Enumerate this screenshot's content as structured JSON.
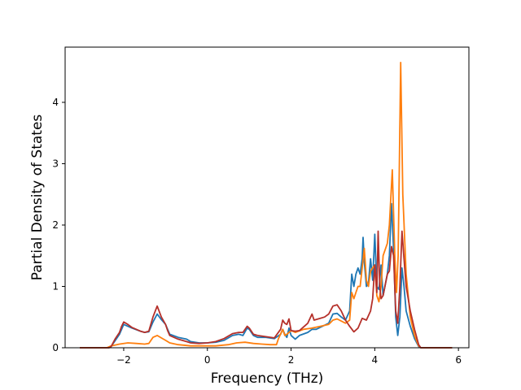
{
  "chart_data": {
    "type": "line",
    "title": "",
    "xlabel": "Frequency (THz)",
    "ylabel": "Partial Density of States",
    "xlim": [
      -3.4,
      6.25
    ],
    "ylim": [
      0,
      4.9
    ],
    "xticks": [
      -2,
      0,
      2,
      4,
      6
    ],
    "xtick_labels": [
      "−2",
      "0",
      "2",
      "4",
      "6"
    ],
    "yticks": [
      0,
      1,
      2,
      3,
      4
    ],
    "ytick_labels": [
      "0",
      "1",
      "2",
      "3",
      "4"
    ],
    "grid": false,
    "legend": "none",
    "series": [
      {
        "color": "#1f77b4",
        "points": [
          [
            -3.05,
            0
          ],
          [
            -2.35,
            0
          ],
          [
            -2.3,
            0.02
          ],
          [
            -2.2,
            0.12
          ],
          [
            -2.1,
            0.22
          ],
          [
            -2.05,
            0.3
          ],
          [
            -2.0,
            0.38
          ],
          [
            -1.9,
            0.35
          ],
          [
            -1.8,
            0.32
          ],
          [
            -1.6,
            0.27
          ],
          [
            -1.5,
            0.25
          ],
          [
            -1.4,
            0.26
          ],
          [
            -1.3,
            0.42
          ],
          [
            -1.2,
            0.55
          ],
          [
            -1.1,
            0.46
          ],
          [
            -1.0,
            0.38
          ],
          [
            -0.95,
            0.3
          ],
          [
            -0.9,
            0.22
          ],
          [
            -0.7,
            0.17
          ],
          [
            -0.5,
            0.14
          ],
          [
            -0.4,
            0.1
          ],
          [
            -0.2,
            0.08
          ],
          [
            0.0,
            0.08
          ],
          [
            0.2,
            0.09
          ],
          [
            0.4,
            0.12
          ],
          [
            0.6,
            0.2
          ],
          [
            0.75,
            0.22
          ],
          [
            0.85,
            0.2
          ],
          [
            0.95,
            0.32
          ],
          [
            1.0,
            0.3
          ],
          [
            1.1,
            0.2
          ],
          [
            1.2,
            0.17
          ],
          [
            1.4,
            0.17
          ],
          [
            1.6,
            0.15
          ],
          [
            1.75,
            0.22
          ],
          [
            1.8,
            0.3
          ],
          [
            1.85,
            0.22
          ],
          [
            1.9,
            0.17
          ],
          [
            1.95,
            0.32
          ],
          [
            2.0,
            0.2
          ],
          [
            2.1,
            0.14
          ],
          [
            2.2,
            0.2
          ],
          [
            2.4,
            0.25
          ],
          [
            2.5,
            0.3
          ],
          [
            2.6,
            0.3
          ],
          [
            2.75,
            0.35
          ],
          [
            2.9,
            0.4
          ],
          [
            3.0,
            0.55
          ],
          [
            3.1,
            0.56
          ],
          [
            3.2,
            0.5
          ],
          [
            3.3,
            0.45
          ],
          [
            3.4,
            0.6
          ],
          [
            3.45,
            1.2
          ],
          [
            3.5,
            1.0
          ],
          [
            3.55,
            1.2
          ],
          [
            3.6,
            1.3
          ],
          [
            3.65,
            1.2
          ],
          [
            3.7,
            1.45
          ],
          [
            3.72,
            1.8
          ],
          [
            3.75,
            1.4
          ],
          [
            3.8,
            1.0
          ],
          [
            3.85,
            1.05
          ],
          [
            3.9,
            1.45
          ],
          [
            3.95,
            1.1
          ],
          [
            4.0,
            1.85
          ],
          [
            4.05,
            1.0
          ],
          [
            4.1,
            0.95
          ],
          [
            4.15,
            1.35
          ],
          [
            4.2,
            0.85
          ],
          [
            4.3,
            1.2
          ],
          [
            4.35,
            1.5
          ],
          [
            4.4,
            2.35
          ],
          [
            4.45,
            1.6
          ],
          [
            4.5,
            0.5
          ],
          [
            4.55,
            0.2
          ],
          [
            4.6,
            0.5
          ],
          [
            4.65,
            1.3
          ],
          [
            4.7,
            1.0
          ],
          [
            4.75,
            0.6
          ],
          [
            4.85,
            0.35
          ],
          [
            4.95,
            0.15
          ],
          [
            5.05,
            0.02
          ],
          [
            5.1,
            0
          ],
          [
            5.85,
            0
          ]
        ]
      },
      {
        "color": "#ff7f0e",
        "points": [
          [
            -3.05,
            0
          ],
          [
            -2.4,
            0
          ],
          [
            -2.3,
            0.03
          ],
          [
            -2.1,
            0.06
          ],
          [
            -1.9,
            0.08
          ],
          [
            -1.7,
            0.07
          ],
          [
            -1.5,
            0.06
          ],
          [
            -1.4,
            0.07
          ],
          [
            -1.3,
            0.17
          ],
          [
            -1.2,
            0.2
          ],
          [
            -1.1,
            0.16
          ],
          [
            -1.0,
            0.12
          ],
          [
            -0.9,
            0.08
          ],
          [
            -0.7,
            0.05
          ],
          [
            -0.4,
            0.03
          ],
          [
            -0.2,
            0.03
          ],
          [
            0.0,
            0.03
          ],
          [
            0.2,
            0.03
          ],
          [
            0.5,
            0.05
          ],
          [
            0.7,
            0.08
          ],
          [
            0.9,
            0.09
          ],
          [
            1.1,
            0.07
          ],
          [
            1.3,
            0.06
          ],
          [
            1.5,
            0.05
          ],
          [
            1.65,
            0.05
          ],
          [
            1.7,
            0.15
          ],
          [
            1.8,
            0.3
          ],
          [
            1.85,
            0.2
          ],
          [
            1.9,
            0.22
          ],
          [
            2.0,
            0.28
          ],
          [
            2.1,
            0.25
          ],
          [
            2.3,
            0.3
          ],
          [
            2.5,
            0.32
          ],
          [
            2.7,
            0.35
          ],
          [
            2.9,
            0.38
          ],
          [
            3.0,
            0.45
          ],
          [
            3.1,
            0.47
          ],
          [
            3.3,
            0.4
          ],
          [
            3.4,
            0.45
          ],
          [
            3.45,
            0.9
          ],
          [
            3.5,
            0.8
          ],
          [
            3.55,
            0.9
          ],
          [
            3.6,
            1.0
          ],
          [
            3.65,
            1.0
          ],
          [
            3.7,
            1.3
          ],
          [
            3.75,
            1.62
          ],
          [
            3.8,
            1.1
          ],
          [
            3.85,
            1.0
          ],
          [
            3.9,
            1.25
          ],
          [
            3.95,
            1.3
          ],
          [
            4.0,
            1.35
          ],
          [
            4.05,
            0.85
          ],
          [
            4.1,
            0.75
          ],
          [
            4.15,
            1.0
          ],
          [
            4.2,
            1.5
          ],
          [
            4.3,
            1.7
          ],
          [
            4.35,
            2.0
          ],
          [
            4.42,
            2.9
          ],
          [
            4.48,
            1.5
          ],
          [
            4.52,
            0.9
          ],
          [
            4.56,
            1.5
          ],
          [
            4.62,
            4.65
          ],
          [
            4.67,
            2.5
          ],
          [
            4.75,
            1.2
          ],
          [
            4.85,
            0.5
          ],
          [
            4.95,
            0.2
          ],
          [
            5.05,
            0.03
          ],
          [
            5.1,
            0
          ],
          [
            5.85,
            0
          ]
        ]
      },
      {
        "color": "#b5302a",
        "points": [
          [
            -3.05,
            0
          ],
          [
            -2.35,
            0
          ],
          [
            -2.3,
            0.02
          ],
          [
            -2.2,
            0.15
          ],
          [
            -2.1,
            0.25
          ],
          [
            -2.05,
            0.35
          ],
          [
            -2.0,
            0.42
          ],
          [
            -1.9,
            0.38
          ],
          [
            -1.8,
            0.33
          ],
          [
            -1.6,
            0.27
          ],
          [
            -1.5,
            0.25
          ],
          [
            -1.4,
            0.27
          ],
          [
            -1.3,
            0.5
          ],
          [
            -1.2,
            0.68
          ],
          [
            -1.1,
            0.5
          ],
          [
            -1.0,
            0.38
          ],
          [
            -0.95,
            0.28
          ],
          [
            -0.9,
            0.2
          ],
          [
            -0.7,
            0.14
          ],
          [
            -0.5,
            0.1
          ],
          [
            -0.4,
            0.08
          ],
          [
            -0.2,
            0.07
          ],
          [
            0.0,
            0.08
          ],
          [
            0.2,
            0.1
          ],
          [
            0.4,
            0.15
          ],
          [
            0.6,
            0.23
          ],
          [
            0.75,
            0.25
          ],
          [
            0.85,
            0.25
          ],
          [
            0.95,
            0.35
          ],
          [
            1.0,
            0.32
          ],
          [
            1.1,
            0.22
          ],
          [
            1.2,
            0.2
          ],
          [
            1.4,
            0.18
          ],
          [
            1.6,
            0.16
          ],
          [
            1.75,
            0.3
          ],
          [
            1.8,
            0.45
          ],
          [
            1.85,
            0.4
          ],
          [
            1.9,
            0.38
          ],
          [
            1.95,
            0.47
          ],
          [
            2.0,
            0.28
          ],
          [
            2.1,
            0.27
          ],
          [
            2.2,
            0.28
          ],
          [
            2.4,
            0.4
          ],
          [
            2.5,
            0.55
          ],
          [
            2.55,
            0.45
          ],
          [
            2.7,
            0.48
          ],
          [
            2.8,
            0.5
          ],
          [
            2.9,
            0.55
          ],
          [
            3.0,
            0.68
          ],
          [
            3.1,
            0.7
          ],
          [
            3.2,
            0.6
          ],
          [
            3.3,
            0.45
          ],
          [
            3.4,
            0.35
          ],
          [
            3.5,
            0.26
          ],
          [
            3.6,
            0.32
          ],
          [
            3.7,
            0.48
          ],
          [
            3.8,
            0.45
          ],
          [
            3.9,
            0.6
          ],
          [
            3.95,
            0.8
          ],
          [
            4.0,
            1.35
          ],
          [
            4.05,
            0.9
          ],
          [
            4.08,
            1.9
          ],
          [
            4.12,
            1.0
          ],
          [
            4.15,
            0.8
          ],
          [
            4.2,
            0.85
          ],
          [
            4.3,
            1.2
          ],
          [
            4.35,
            1.25
          ],
          [
            4.4,
            1.65
          ],
          [
            4.45,
            1.5
          ],
          [
            4.5,
            0.6
          ],
          [
            4.55,
            0.4
          ],
          [
            4.6,
            1.0
          ],
          [
            4.65,
            1.9
          ],
          [
            4.7,
            1.45
          ],
          [
            4.75,
            1.0
          ],
          [
            4.85,
            0.6
          ],
          [
            4.95,
            0.3
          ],
          [
            5.05,
            0.05
          ],
          [
            5.1,
            0
          ],
          [
            5.85,
            0
          ]
        ]
      }
    ]
  }
}
